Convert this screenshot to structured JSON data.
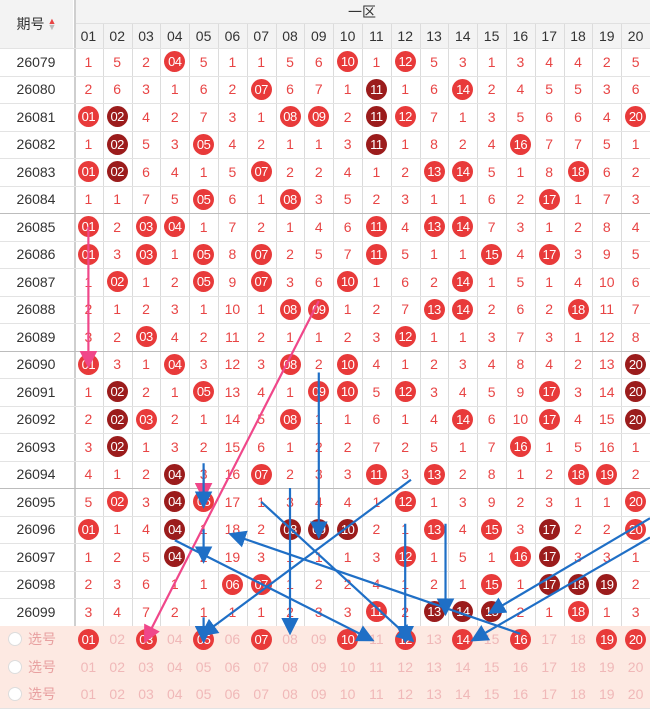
{
  "header": {
    "issue_label": "期号",
    "zone_label": "一区",
    "columns": [
      "01",
      "02",
      "03",
      "04",
      "05",
      "06",
      "07",
      "08",
      "09",
      "10",
      "11",
      "12",
      "13",
      "14",
      "15",
      "16",
      "17",
      "18",
      "19",
      "20"
    ]
  },
  "colors": {
    "ball_red": "#e83a3a",
    "ball_dark": "#9b1c1c",
    "miss_text": "#e84545",
    "arrow_blue": "#1f6fc6",
    "arrow_pink": "#f0478a"
  },
  "rows": [
    {
      "issue": "26079",
      "cells": [
        "1",
        "5",
        "2",
        "*04",
        "5",
        "1",
        "1",
        "5",
        "6",
        "*10",
        "1",
        "*12",
        "5",
        "3",
        "1",
        "3",
        "4",
        "4",
        "2",
        "5"
      ]
    },
    {
      "issue": "26080",
      "cells": [
        "2",
        "6",
        "3",
        "1",
        "6",
        "2",
        "*07",
        "6",
        "7",
        "1",
        "#11",
        "1",
        "6",
        "*14",
        "2",
        "4",
        "5",
        "5",
        "3",
        "6"
      ]
    },
    {
      "issue": "26081",
      "cells": [
        "*01",
        "#02",
        "4",
        "2",
        "7",
        "3",
        "1",
        "*08",
        "*09",
        "2",
        "#11",
        "*12",
        "7",
        "1",
        "3",
        "5",
        "6",
        "6",
        "4",
        "*20"
      ]
    },
    {
      "issue": "26082",
      "cells": [
        "1",
        "#02",
        "5",
        "3",
        "*05",
        "4",
        "2",
        "1",
        "1",
        "3",
        "#11",
        "1",
        "8",
        "2",
        "4",
        "*16",
        "7",
        "7",
        "5",
        "1"
      ]
    },
    {
      "issue": "26083",
      "cells": [
        "*01",
        "#02",
        "6",
        "4",
        "1",
        "5",
        "*07",
        "2",
        "2",
        "4",
        "1",
        "2",
        "*13",
        "*14",
        "5",
        "1",
        "8",
        "*18",
        "6",
        "2"
      ]
    },
    {
      "issue": "26084",
      "cells": [
        "1",
        "1",
        "7",
        "5",
        "*05",
        "6",
        "1",
        "*08",
        "3",
        "5",
        "2",
        "3",
        "1",
        "1",
        "6",
        "2",
        "*17",
        "1",
        "7",
        "3"
      ]
    },
    {
      "issue": "26085",
      "cells": [
        "*01",
        "2",
        "*03",
        "*04",
        "1",
        "7",
        "2",
        "1",
        "4",
        "6",
        "*11",
        "4",
        "*13",
        "*14",
        "7",
        "3",
        "1",
        "2",
        "8",
        "4"
      ]
    },
    {
      "issue": "26086",
      "cells": [
        "*01",
        "3",
        "*03",
        "1",
        "*05",
        "8",
        "*07",
        "2",
        "5",
        "7",
        "*11",
        "5",
        "1",
        "1",
        "*15",
        "4",
        "*17",
        "3",
        "9",
        "5"
      ]
    },
    {
      "issue": "26087",
      "cells": [
        "1",
        "*02",
        "1",
        "2",
        "*05",
        "9",
        "*07",
        "3",
        "6",
        "*10",
        "1",
        "6",
        "2",
        "*14",
        "1",
        "5",
        "1",
        "4",
        "10",
        "6"
      ]
    },
    {
      "issue": "26088",
      "cells": [
        "2",
        "1",
        "2",
        "3",
        "1",
        "10",
        "1",
        "*08",
        "*09",
        "1",
        "2",
        "7",
        "*13",
        "*14",
        "2",
        "6",
        "2",
        "*18",
        "11",
        "7"
      ]
    },
    {
      "issue": "26089",
      "cells": [
        "3",
        "2",
        "*03",
        "4",
        "2",
        "11",
        "2",
        "1",
        "1",
        "2",
        "3",
        "*12",
        "1",
        "1",
        "3",
        "7",
        "3",
        "1",
        "12",
        "8"
      ]
    },
    {
      "issue": "26090",
      "cells": [
        "*01",
        "3",
        "1",
        "*04",
        "3",
        "12",
        "3",
        "*08",
        "2",
        "*10",
        "4",
        "1",
        "2",
        "3",
        "4",
        "8",
        "4",
        "2",
        "13",
        "#20"
      ]
    },
    {
      "issue": "26091",
      "cells": [
        "1",
        "#02",
        "2",
        "1",
        "*05",
        "13",
        "4",
        "1",
        "*09",
        "*10",
        "5",
        "*12",
        "3",
        "4",
        "5",
        "9",
        "*17",
        "3",
        "14",
        "#20"
      ]
    },
    {
      "issue": "26092",
      "cells": [
        "2",
        "#02",
        "*03",
        "2",
        "1",
        "14",
        "5",
        "*08",
        "1",
        "1",
        "6",
        "1",
        "4",
        "*14",
        "6",
        "10",
        "*17",
        "4",
        "15",
        "#20"
      ]
    },
    {
      "issue": "26093",
      "cells": [
        "3",
        "#02",
        "1",
        "3",
        "2",
        "15",
        "6",
        "1",
        "2",
        "2",
        "7",
        "2",
        "5",
        "1",
        "7",
        "*16",
        "1",
        "5",
        "16",
        "1"
      ]
    },
    {
      "issue": "26094",
      "cells": [
        "4",
        "1",
        "2",
        "#04",
        "3",
        "16",
        "*07",
        "2",
        "3",
        "3",
        "*11",
        "3",
        "*13",
        "2",
        "8",
        "1",
        "2",
        "*18",
        "*19",
        "2"
      ]
    },
    {
      "issue": "26095",
      "cells": [
        "5",
        "*02",
        "3",
        "#04",
        "*05",
        "17",
        "1",
        "3",
        "4",
        "4",
        "1",
        "*12",
        "1",
        "3",
        "9",
        "2",
        "3",
        "1",
        "1",
        "*20"
      ]
    },
    {
      "issue": "26096",
      "cells": [
        "*01",
        "1",
        "4",
        "#04",
        "1",
        "18",
        "2",
        "#08",
        "#09",
        "#10",
        "2",
        "1",
        "*13",
        "4",
        "*15",
        "3",
        "#17",
        "2",
        "2",
        "*20"
      ]
    },
    {
      "issue": "26097",
      "cells": [
        "1",
        "2",
        "5",
        "#04",
        "2",
        "19",
        "3",
        "1",
        "1",
        "1",
        "3",
        "*12",
        "1",
        "5",
        "1",
        "*16",
        "#17",
        "3",
        "3",
        "1"
      ]
    },
    {
      "issue": "26098",
      "cells": [
        "2",
        "3",
        "6",
        "1",
        "1",
        "*06",
        "*07",
        "1",
        "2",
        "2",
        "4",
        "1",
        "2",
        "1",
        "*15",
        "1",
        "#17",
        "#18",
        "#19",
        "2"
      ]
    },
    {
      "issue": "26099",
      "cells": [
        "3",
        "4",
        "7",
        "2",
        "1",
        "1",
        "1",
        "2",
        "3",
        "3",
        "*11",
        "2",
        "#13",
        "#14",
        "#15",
        "2",
        "1",
        "*18",
        "1",
        "3"
      ]
    }
  ],
  "pick_rows": [
    {
      "label": "选号",
      "cells": [
        "*01",
        "02",
        "*03",
        "04",
        "*05",
        "06",
        "*07",
        "08",
        "09",
        "*10",
        "11",
        "*12",
        "13",
        "*14",
        "15",
        "*16",
        "17",
        "18",
        "*19",
        "*20"
      ]
    },
    {
      "label": "选号",
      "cells": [
        "01",
        "02",
        "03",
        "04",
        "05",
        "06",
        "07",
        "08",
        "09",
        "10",
        "11",
        "12",
        "13",
        "14",
        "15",
        "16",
        "17",
        "18",
        "19",
        "20"
      ]
    },
    {
      "label": "选号",
      "cells": [
        "01",
        "02",
        "03",
        "04",
        "05",
        "06",
        "07",
        "08",
        "09",
        "10",
        "11",
        "12",
        "13",
        "14",
        "15",
        "16",
        "17",
        "18",
        "19",
        "20"
      ]
    }
  ]
}
